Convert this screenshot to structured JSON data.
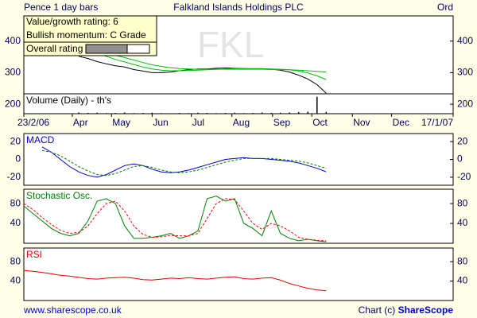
{
  "header": {
    "left": "Pence 1 day bars",
    "title": "Falkland Islands Holdings PLC",
    "right": "Ord"
  },
  "info": {
    "lines": [
      "Value/growth rating: 6",
      "Bullish momentum:  C Grade",
      "Overall rating"
    ],
    "watermark": "FKL"
  },
  "footer": {
    "left": "www.sharescope.co.uk",
    "right_prefix": "Chart (c) ",
    "right_brand": "ShareScope"
  },
  "chart_data": [
    {
      "type": "line",
      "ylim": [
        170,
        480
      ],
      "yticks": [
        200,
        300,
        400
      ],
      "x": [
        42,
        49,
        56,
        63,
        70,
        77,
        84,
        91,
        98,
        105,
        112,
        119,
        126,
        133,
        140,
        147,
        154,
        161,
        168,
        175,
        182,
        189,
        196,
        203,
        210,
        217,
        224,
        231
      ],
      "series": [
        {
          "color": "#000000",
          "values": [
            352,
            345,
            335,
            328,
            322,
            318,
            310,
            305,
            300,
            300,
            302,
            306,
            310,
            312,
            312,
            314,
            315,
            314,
            313,
            312,
            312,
            311,
            308,
            302,
            292,
            280,
            262,
            235
          ]
        },
        {
          "color": "#00c000",
          "values": [
            372,
            368,
            360,
            352,
            342,
            334,
            326,
            318,
            312,
            308,
            306,
            306,
            307,
            308,
            309,
            311,
            312,
            313,
            313,
            313,
            313,
            312,
            311,
            309,
            305,
            299,
            290,
            278
          ]
        },
        {
          "color": "#00c000",
          "values": [
            375,
            372,
            368,
            362,
            355,
            348,
            340,
            332,
            325,
            320,
            316,
            313,
            312,
            311,
            311,
            311,
            311,
            311,
            311,
            311,
            311,
            310,
            310,
            309,
            308,
            306,
            304,
            302
          ]
        }
      ]
    },
    {
      "type": "bar",
      "label": "Volume (Daily) - th's",
      "ylim": [
        0,
        100
      ],
      "color": "#000000",
      "xlim": [
        0,
        328
      ],
      "xticks": [
        {
          "value": 0,
          "label": "23/2/06"
        },
        {
          "value": 37,
          "label": "Apr"
        },
        {
          "value": 67,
          "label": "May"
        },
        {
          "value": 98,
          "label": "Jun"
        },
        {
          "value": 128,
          "label": "Jul"
        },
        {
          "value": 159,
          "label": "Aug"
        },
        {
          "value": 190,
          "label": "Sep"
        },
        {
          "value": 220,
          "label": "Oct"
        },
        {
          "value": 251,
          "label": "Nov"
        },
        {
          "value": 281,
          "label": "Dec"
        },
        {
          "value": 328,
          "label": "17/1/07"
        }
      ],
      "x": [
        42,
        49,
        56,
        63,
        70,
        77,
        84,
        91,
        98,
        105,
        112,
        119,
        126,
        133,
        140,
        147,
        154,
        161,
        168,
        175,
        182,
        189,
        196,
        203,
        210,
        217,
        224,
        231
      ],
      "values": [
        6,
        4,
        5,
        3,
        4,
        6,
        3,
        4,
        5,
        3,
        2,
        4,
        3,
        5,
        4,
        3,
        4,
        5,
        3,
        4,
        6,
        4,
        5,
        6,
        8,
        10,
        85,
        9
      ]
    },
    {
      "type": "line",
      "label": "MACD",
      "label_color": "#0000c0",
      "ylim": [
        -29,
        29
      ],
      "yticks": [
        -20,
        0,
        20
      ],
      "x": [
        14,
        21,
        28,
        35,
        42,
        49,
        56,
        63,
        70,
        77,
        84,
        91,
        98,
        105,
        112,
        119,
        126,
        133,
        140,
        147,
        154,
        161,
        168,
        175,
        182,
        189,
        196,
        203,
        210,
        217,
        224,
        231
      ],
      "series": [
        {
          "color": "#0000c0",
          "style": "solid",
          "values": [
            14,
            8,
            0,
            -8,
            -14,
            -18,
            -20,
            -17,
            -12,
            -7,
            -5,
            -7,
            -11,
            -14,
            -15,
            -14,
            -12,
            -9,
            -6,
            -3,
            0,
            1,
            2,
            1,
            1,
            0,
            -1,
            -2,
            -4,
            -7,
            -10,
            -14
          ]
        },
        {
          "color": "#008000",
          "style": "dashed",
          "values": [
            10,
            8,
            4,
            -2,
            -8,
            -13,
            -17,
            -18,
            -16,
            -12,
            -8,
            -7,
            -9,
            -12,
            -14,
            -15,
            -14,
            -12,
            -9,
            -6,
            -3,
            -1,
            1,
            1,
            1,
            1,
            0,
            -1,
            -2,
            -4,
            -7,
            -10
          ]
        }
      ]
    },
    {
      "type": "line",
      "label": "Stochastic Osc.",
      "label_color": "#008000",
      "ylim": [
        0,
        109
      ],
      "yticks": [
        40,
        80
      ],
      "x": [
        0,
        7,
        14,
        21,
        28,
        35,
        42,
        49,
        56,
        63,
        70,
        77,
        84,
        91,
        98,
        105,
        112,
        119,
        126,
        133,
        140,
        147,
        154,
        161,
        168,
        175,
        182,
        189,
        196,
        203,
        210,
        217,
        224,
        231
      ],
      "series": [
        {
          "color": "#008000",
          "style": "solid",
          "values": [
            75,
            60,
            45,
            30,
            20,
            15,
            20,
            45,
            85,
            90,
            80,
            35,
            10,
            10,
            12,
            15,
            20,
            10,
            15,
            25,
            90,
            95,
            85,
            90,
            40,
            30,
            15,
            65,
            20,
            10,
            5,
            8,
            5,
            3
          ]
        },
        {
          "color": "#ff0000",
          "style": "dashed",
          "values": [
            80,
            68,
            52,
            38,
            26,
            20,
            22,
            35,
            60,
            80,
            85,
            65,
            35,
            18,
            12,
            13,
            16,
            15,
            15,
            20,
            50,
            80,
            90,
            88,
            65,
            40,
            28,
            40,
            35,
            25,
            12,
            8,
            6,
            5
          ]
        }
      ]
    },
    {
      "type": "line",
      "label": "RSI",
      "label_color": "#e00000",
      "ylim": [
        0,
        108
      ],
      "yticks": [
        40,
        80
      ],
      "x": [
        0,
        7,
        14,
        21,
        28,
        35,
        42,
        49,
        56,
        63,
        70,
        77,
        84,
        91,
        98,
        105,
        112,
        119,
        126,
        133,
        140,
        147,
        154,
        161,
        168,
        175,
        182,
        189,
        196,
        203,
        210,
        217,
        224,
        231
      ],
      "series": [
        {
          "color": "#e00000",
          "style": "solid",
          "values": [
            62,
            60,
            58,
            55,
            52,
            50,
            48,
            45,
            44,
            46,
            47,
            48,
            46,
            43,
            42,
            44,
            46,
            45,
            47,
            45,
            44,
            46,
            48,
            49,
            45,
            44,
            46,
            47,
            42,
            35,
            30,
            25,
            22,
            20
          ]
        }
      ]
    }
  ]
}
